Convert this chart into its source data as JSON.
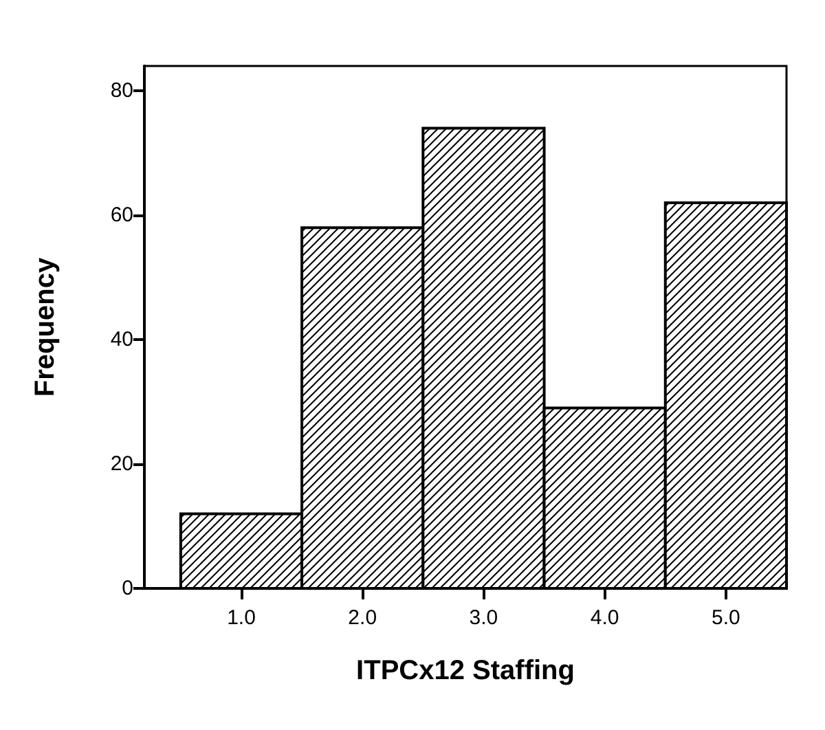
{
  "chart_data": {
    "type": "histogram",
    "xlabel": "ITPCx12 Staffing",
    "ylabel": "Frequency",
    "bins": [
      0.5,
      1.5,
      2.5,
      3.5,
      4.5,
      5.5
    ],
    "values": [
      12,
      58,
      74,
      29,
      62
    ],
    "color": "#000000",
    "xlim": [
      0.2,
      5.5
    ],
    "xticks": [
      {
        "value": 1,
        "label": "1.0"
      },
      {
        "value": 2,
        "label": "2.0"
      },
      {
        "value": 3,
        "label": "3.0"
      },
      {
        "value": 4,
        "label": "4.0"
      },
      {
        "value": 5,
        "label": "5.0"
      }
    ],
    "ylim": [
      0,
      84
    ],
    "yticks": [
      0,
      20,
      40,
      60,
      80
    ],
    "grid": false
  }
}
